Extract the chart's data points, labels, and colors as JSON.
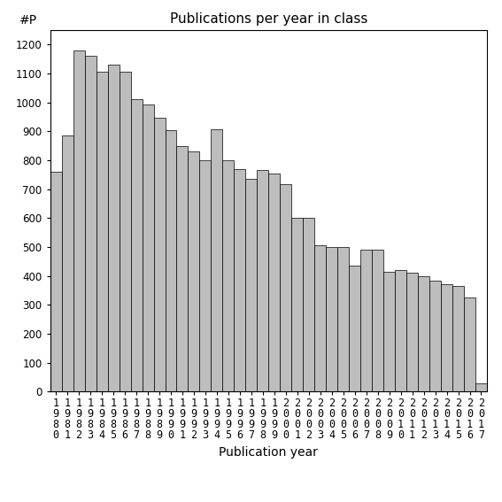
{
  "title": "Publications per year in class",
  "xlabel": "Publication year",
  "ylabel": "#P",
  "years": [
    "1980",
    "1981",
    "1982",
    "1983",
    "1984",
    "1985",
    "1986",
    "1987",
    "1988",
    "1989",
    "1990",
    "1991",
    "1992",
    "1993",
    "1994",
    "1995",
    "1996",
    "1997",
    "1998",
    "1999",
    "2000",
    "2001",
    "2002",
    "2003",
    "2004",
    "2005",
    "2006",
    "2007",
    "2008",
    "2009",
    "2010",
    "2011",
    "2012",
    "2013",
    "2014",
    "2015",
    "2016",
    "2017"
  ],
  "values": [
    760,
    885,
    1180,
    1160,
    1105,
    1130,
    1105,
    1010,
    993,
    948,
    905,
    848,
    830,
    800,
    908,
    800,
    770,
    735,
    765,
    755,
    718,
    600,
    600,
    505,
    500,
    500,
    435,
    490,
    490,
    415,
    420,
    410,
    400,
    385,
    370,
    365,
    325,
    28
  ],
  "bar_color": "#bdbdbd",
  "bar_edge_color": "#000000",
  "ylim": [
    0,
    1250
  ],
  "yticks": [
    0,
    100,
    200,
    300,
    400,
    500,
    600,
    700,
    800,
    900,
    1000,
    1100,
    1200
  ],
  "background_color": "#ffffff",
  "title_fontsize": 11,
  "label_fontsize": 10,
  "tick_fontsize": 8.5
}
